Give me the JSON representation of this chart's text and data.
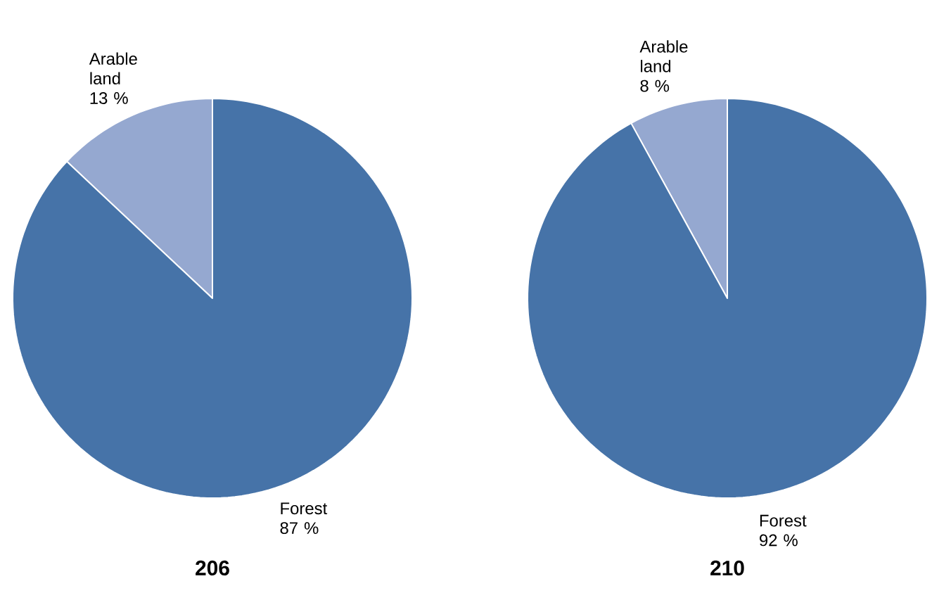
{
  "chart_data": [
    {
      "type": "pie",
      "title": "206",
      "categories": [
        "Arable land",
        "Forest"
      ],
      "values": [
        13,
        87
      ],
      "colors": [
        "#95a8d0",
        "#4673a8"
      ],
      "value_labels": [
        "13 %",
        "87 %"
      ]
    },
    {
      "type": "pie",
      "title": "210",
      "categories": [
        "Arable land",
        "Forest"
      ],
      "values": [
        8,
        92
      ],
      "colors": [
        "#95a8d0",
        "#4673a8"
      ],
      "value_labels": [
        "8 %",
        "92 %"
      ]
    }
  ]
}
